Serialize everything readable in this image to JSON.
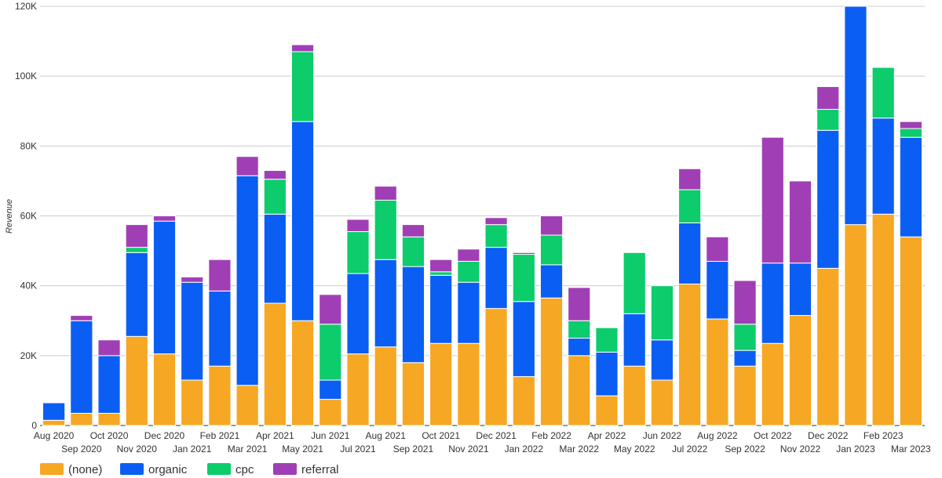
{
  "chart_data": {
    "type": "bar",
    "stacked": true,
    "ylabel": "Revenue",
    "ylim": [
      0,
      120000
    ],
    "yticks": [
      0,
      20000,
      40000,
      60000,
      80000,
      100000,
      120000
    ],
    "ytick_labels": [
      "0",
      "20K",
      "40K",
      "60K",
      "80K",
      "100K",
      "120K"
    ],
    "grid": true,
    "legend_position": "bottom-left",
    "categories": [
      "Aug 2020",
      "Sep 2020",
      "Oct 2020",
      "Nov 2020",
      "Dec 2020",
      "Jan 2021",
      "Feb 2021",
      "Mar 2021",
      "Apr 2021",
      "May 2021",
      "Jun 2021",
      "Jul 2021",
      "Aug 2021",
      "Sep 2021",
      "Oct 2021",
      "Nov 2021",
      "Dec 2021",
      "Jan 2022",
      "Feb 2022",
      "Mar 2022",
      "Apr 2022",
      "May 2022",
      "Jun 2022",
      "Jul 2022",
      "Aug 2022",
      "Sep 2022",
      "Oct 2022",
      "Nov 2022",
      "Dec 2022",
      "Jan 2023",
      "Feb 2023",
      "Mar 2023"
    ],
    "series": [
      {
        "name": "(none)",
        "color": "#f6a723",
        "values": [
          1500,
          3500,
          3500,
          25500,
          20500,
          13000,
          17000,
          11500,
          35000,
          30000,
          7500,
          20500,
          22500,
          18000,
          23500,
          23500,
          33500,
          14000,
          36500,
          20000,
          8500,
          17000,
          13000,
          40500,
          30500,
          17000,
          23500,
          31500,
          45000,
          57500,
          60500,
          54000
        ]
      },
      {
        "name": "organic",
        "color": "#0b5ef3",
        "values": [
          5000,
          26500,
          16500,
          24000,
          38000,
          28000,
          21500,
          60000,
          25500,
          57000,
          5500,
          23000,
          25000,
          27500,
          19500,
          17500,
          17500,
          21500,
          9500,
          5000,
          12500,
          15000,
          11500,
          17500,
          16500,
          4500,
          23000,
          15000,
          39500,
          63500,
          27500,
          28500
        ]
      },
      {
        "name": "cpc",
        "color": "#0ccc6b",
        "values": [
          0,
          0,
          0,
          1500,
          0,
          0,
          0,
          0,
          10000,
          20000,
          16000,
          12000,
          17000,
          8500,
          1000,
          6000,
          6500,
          13500,
          8500,
          5000,
          7000,
          17500,
          15500,
          9500,
          0,
          7500,
          0,
          0,
          6000,
          0,
          14500,
          2500
        ]
      },
      {
        "name": "referral",
        "color": "#a03fb5",
        "values": [
          0,
          1500,
          4500,
          6500,
          1500,
          1500,
          9000,
          5500,
          2500,
          2000,
          8500,
          3500,
          4000,
          3500,
          3500,
          3500,
          2000,
          500,
          5500,
          9500,
          0,
          0,
          0,
          6000,
          7000,
          12500,
          36000,
          23500,
          6500,
          0,
          0,
          2000
        ]
      }
    ]
  }
}
